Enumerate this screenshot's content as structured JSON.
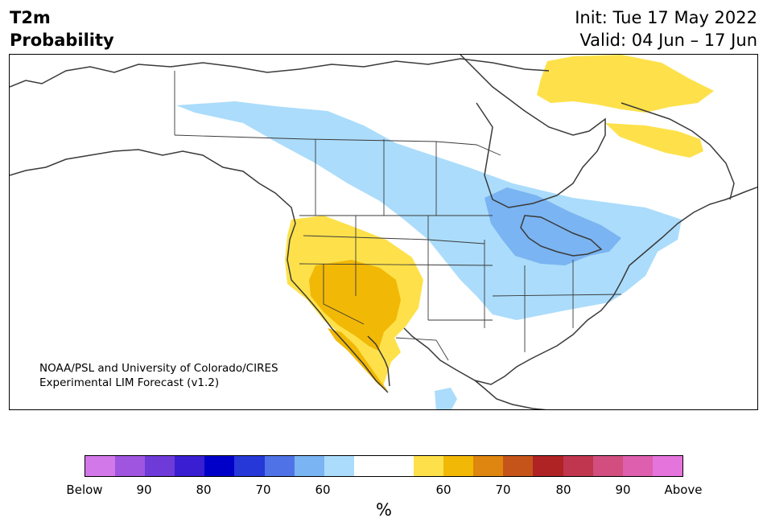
{
  "header": {
    "title_line1": "T2m",
    "title_line2": "Probability",
    "init": "Init: Tue 17 May 2022",
    "valid": "Valid: 04 Jun – 17 Jun"
  },
  "credit": {
    "line1": "NOAA/PSL and University of Colorado/CIRES",
    "line2": "Experimental LIM Forecast (v1.2)"
  },
  "colorbar": {
    "colors": [
      "#d378e8",
      "#9f55e0",
      "#6e3bd8",
      "#3a1ed2",
      "#0000c8",
      "#2638d8",
      "#4f73e6",
      "#7ab4f2",
      "#abdcfb",
      "#ffffff",
      "#ffffff",
      "#fee14a",
      "#f2b806",
      "#de860f",
      "#c5541a",
      "#b02325",
      "#c0364f",
      "#d14e7e",
      "#dd5fae",
      "#e674dd"
    ],
    "labels": [
      "Below",
      "90",
      "80",
      "70",
      "60",
      "60",
      "70",
      "80",
      "90",
      "Above"
    ],
    "units": "%"
  },
  "map": {
    "colors": {
      "light_blue": "#abdcfb",
      "mid_blue": "#7ab4f2",
      "yellow": "#fee14a",
      "orange": "#f2b806",
      "land_line": "#3a3a3a",
      "water": "#ffffff"
    }
  }
}
